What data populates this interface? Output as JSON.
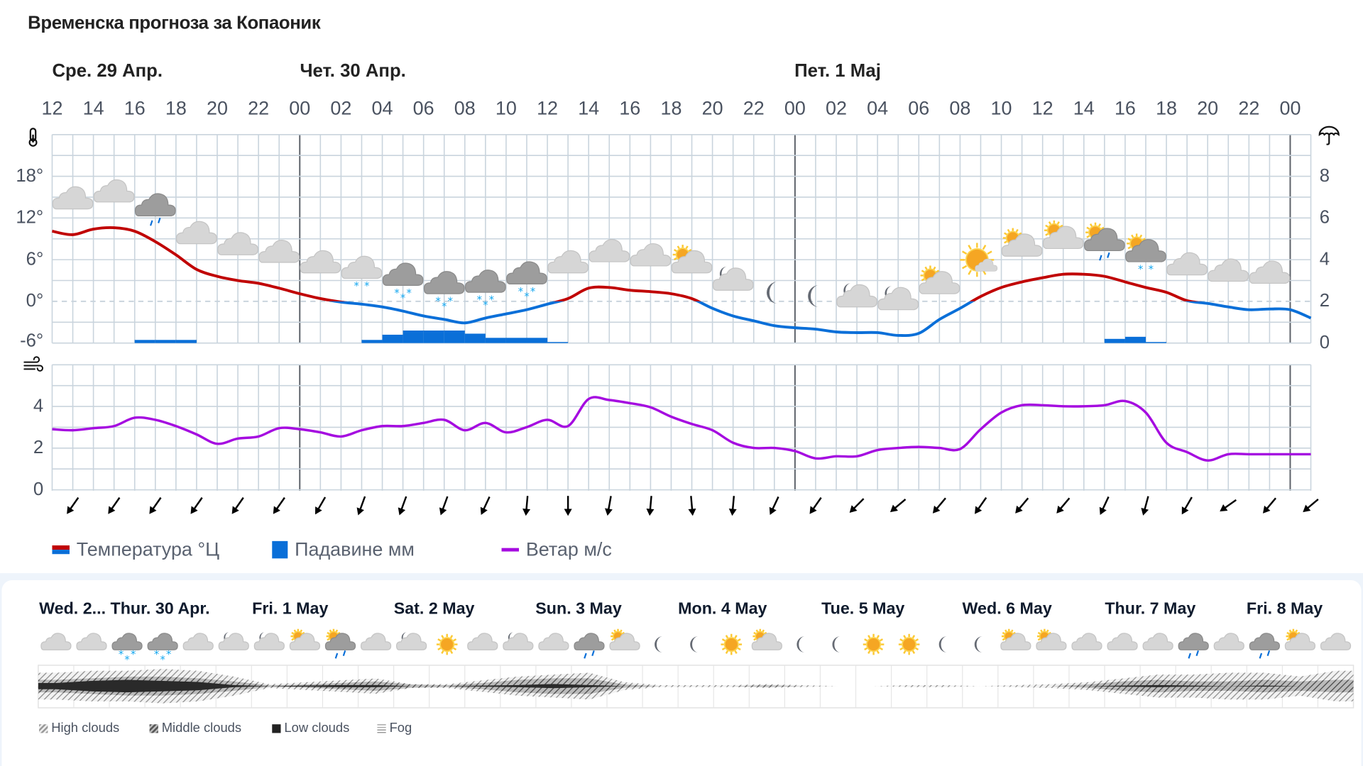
{
  "title": "Временска прогноза за Копаоник",
  "days": [
    "Сре. 29 Апр.",
    "Чет. 30 Апр.",
    "Пет. 1 Мај"
  ],
  "hour_labels": [
    "12",
    "14",
    "16",
    "18",
    "20",
    "22",
    "00",
    "02",
    "04",
    "06",
    "08",
    "10",
    "12",
    "14",
    "16",
    "18",
    "20",
    "22",
    "00",
    "02",
    "04",
    "06",
    "08",
    "10",
    "12",
    "14",
    "16",
    "18",
    "20",
    "22",
    "00"
  ],
  "colors": {
    "temp_warm": "#c00000",
    "temp_cold": "#0a6fd8",
    "precip": "#0a6fd8",
    "wind": "#a50be0",
    "grid": "#c9d4dd",
    "day_line": "#5b6068"
  },
  "icons": {
    "temp_axis": "thermometer-icon",
    "precip_axis": "umbrella-icon",
    "wind_axis": "wind-icon"
  },
  "chart_data": [
    {
      "type": "line",
      "title": "",
      "ylabel": "°",
      "y_ticks": [
        "18°",
        "12°",
        "6°",
        "0°",
        "-6°"
      ],
      "ylim": [
        -6,
        24
      ],
      "y2_ticks": [
        "8",
        "6",
        "4",
        "2",
        "0"
      ],
      "y2lim": [
        0,
        10
      ],
      "x_start": "Сре. 29 Апр. 12:00",
      "x_step_hours": 1,
      "series": [
        {
          "name": "Температура °Ц",
          "values": [
            10.1,
            9.6,
            10.4,
            10.6,
            10.1,
            8.6,
            6.7,
            4.6,
            3.6,
            3.0,
            2.6,
            1.9,
            1.1,
            0.4,
            -0.1,
            -0.4,
            -0.8,
            -1.4,
            -2.1,
            -2.6,
            -3.1,
            -2.4,
            -1.8,
            -1.2,
            -0.4,
            0.4,
            1.9,
            2.0,
            1.6,
            1.4,
            1.1,
            0.4,
            -1.0,
            -2.1,
            -2.8,
            -3.5,
            -3.8,
            -4.0,
            -4.4,
            -4.5,
            -4.5,
            -4.9,
            -4.6,
            -2.6,
            -1.0,
            0.7,
            2.0,
            2.8,
            3.4,
            3.9,
            3.9,
            3.6,
            2.8,
            2.0,
            1.3,
            0.1,
            -0.3,
            -0.8,
            -1.2,
            -1.1,
            -1.2,
            -2.4
          ]
        },
        {
          "name": "Падавине мм",
          "type": "bar",
          "values": [
            0,
            0,
            0,
            0,
            0.15,
            0.15,
            0.15,
            0,
            0,
            0,
            0,
            0,
            0,
            0,
            0,
            0.15,
            0.4,
            0.6,
            0.6,
            0.6,
            0.45,
            0.25,
            0.25,
            0.25,
            0.05,
            0,
            0,
            0,
            0,
            0,
            0,
            0,
            0,
            0,
            0,
            0,
            0,
            0,
            0,
            0,
            0,
            0,
            0,
            0,
            0,
            0,
            0,
            0,
            0,
            0,
            0,
            0.2,
            0.3,
            0.05,
            0,
            0,
            0,
            0,
            0,
            0,
            0,
            0
          ]
        }
      ],
      "weather_icons": [
        "cloud",
        "cloud",
        "cloud-rain",
        "cloud",
        "cloud",
        "cloud",
        "cloud",
        "cloud-snow",
        "cloud-snow-dark",
        "cloud-snow-dark",
        "cloud-snow-dark",
        "cloud-snow-dark",
        "cloud",
        "cloud",
        "cloud",
        "sun-cloud",
        "moon-cloud",
        "moon",
        "moon",
        "moon-cloud",
        "moon-cloud",
        "sun-cloud",
        "sun-big-cloud",
        "sun-cloud",
        "sun-cloud",
        "sun-cloud-rain",
        "sun-cloud-snow",
        "cloud",
        "cloud",
        "cloud"
      ]
    },
    {
      "type": "line",
      "title": "",
      "y_ticks": [
        "4",
        "2",
        "0"
      ],
      "ylim": [
        0,
        6
      ],
      "x_start": "Сре. 29 Апр. 12:00",
      "x_step_hours": 1,
      "series": [
        {
          "name": "Ветар м/с",
          "values": [
            2.95,
            2.9,
            3.0,
            3.1,
            3.5,
            3.4,
            3.1,
            2.7,
            2.25,
            2.5,
            2.6,
            3.0,
            2.95,
            2.8,
            2.6,
            2.9,
            3.1,
            3.1,
            3.25,
            3.4,
            2.9,
            3.25,
            2.8,
            3.05,
            3.4,
            3.1,
            4.4,
            4.35,
            4.2,
            4.0,
            3.55,
            3.2,
            2.9,
            2.3,
            2.05,
            2.05,
            1.9,
            1.55,
            1.65,
            1.65,
            1.95,
            2.05,
            2.1,
            2.05,
            2.0,
            2.95,
            3.75,
            4.1,
            4.1,
            4.05,
            4.05,
            4.1,
            4.3,
            3.75,
            2.3,
            1.85,
            1.45,
            1.75,
            1.75,
            1.75,
            1.75,
            1.75
          ]
        }
      ],
      "wind_direction_deg": [
        35,
        35,
        35,
        35,
        35,
        35,
        30,
        20,
        20,
        20,
        25,
        5,
        0,
        10,
        5,
        -5,
        5,
        25,
        35,
        45,
        50,
        40,
        35,
        40,
        40,
        25,
        15,
        30,
        55,
        40,
        50
      ]
    }
  ],
  "legend": [
    {
      "label": "Температура °Ц"
    },
    {
      "label": "Падавине мм"
    },
    {
      "label": "Ветар м/с"
    }
  ],
  "outlook": {
    "days": [
      "Wed. 2...",
      "Thur. 30 Apr.",
      "Fri. 1 May",
      "Sat. 2 May",
      "Sun. 3 May",
      "Mon. 4 May",
      "Tue. 5 May",
      "Wed. 6 May",
      "Thur. 7 May",
      "Fri. 8 May"
    ],
    "icons": [
      "cloud",
      "cloud",
      "cloud-snow-dark",
      "cloud-snow-dark",
      "cloud",
      "moon-cloud",
      "moon-cloud",
      "sun-cloud",
      "sun-cloud-rain",
      "cloud",
      "moon-cloud",
      "sun",
      "cloud",
      "moon-cloud",
      "cloud",
      "cloud-rain",
      "sun-cloud",
      "moon",
      "moon",
      "sun",
      "sun-cloud",
      "moon",
      "moon",
      "sun",
      "sun",
      "moon",
      "moon",
      "sun-cloud",
      "sun-cloud",
      "cloud",
      "cloud",
      "cloud",
      "cloud-rain",
      "cloud",
      "cloud-rain",
      "sun-cloud",
      "cloud"
    ],
    "cloud_cover": {
      "high": [
        0.7,
        0.8,
        0.8,
        0.9,
        0.8,
        0.5,
        0.1,
        0.2,
        0.3,
        0.4,
        0.1,
        0.1,
        0.3,
        0.5,
        0.6,
        0.7,
        0.2,
        0.05,
        0.05,
        0.05,
        0.1,
        0.05,
        0,
        0,
        0.05,
        0.05,
        0,
        0.05,
        0.1,
        0.2,
        0.4,
        0.6,
        0.6,
        0.7,
        0.7,
        0.5,
        0.8
      ],
      "middle": [
        0.4,
        0.5,
        0.6,
        0.6,
        0.5,
        0.3,
        0.05,
        0.1,
        0.2,
        0.3,
        0.1,
        0.05,
        0.2,
        0.4,
        0.5,
        0.5,
        0.1,
        0,
        0,
        0,
        0.05,
        0,
        0,
        0,
        0,
        0,
        0,
        0,
        0,
        0.1,
        0.3,
        0.4,
        0.3,
        0.3,
        0.4,
        0.3,
        0.4
      ],
      "low": [
        0.3,
        0.5,
        0.6,
        0.5,
        0.4,
        0.1,
        0,
        0.05,
        0.1,
        0.1,
        0,
        0,
        0.05,
        0.1,
        0.2,
        0.1,
        0,
        0,
        0,
        0,
        0,
        0,
        0,
        0,
        0,
        0,
        0,
        0,
        0,
        0,
        0.05,
        0.1,
        0.05,
        0,
        0.05,
        0,
        0
      ]
    },
    "legend": [
      "High clouds",
      "Middle clouds",
      "Low clouds",
      "Fog"
    ]
  }
}
